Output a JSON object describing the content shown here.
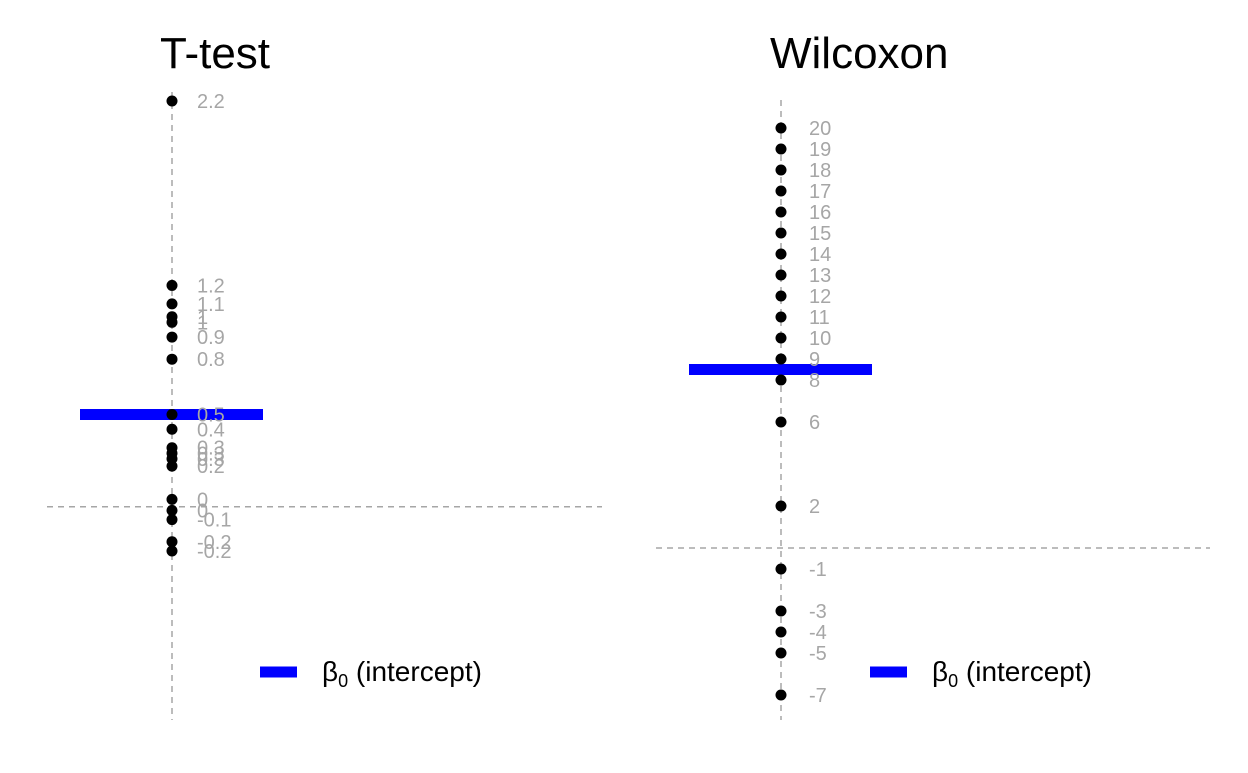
{
  "chart_data": [
    {
      "type": "scatter",
      "title": "T-test",
      "xlabel": "",
      "ylabel": "",
      "ylim": [
        -0.35,
        2.2
      ],
      "grid": false,
      "points": [
        {
          "y": 2.2,
          "label": "2.2"
        },
        {
          "y": 1.2,
          "label": "1.2"
        },
        {
          "y": 1.1,
          "label": "1.1"
        },
        {
          "y": 1.03,
          "label": "1"
        },
        {
          "y": 1.0,
          "label": "1"
        },
        {
          "y": 0.92,
          "label": "0.9"
        },
        {
          "y": 0.8,
          "label": "0.8"
        },
        {
          "y": 0.5,
          "label": "0.5"
        },
        {
          "y": 0.42,
          "label": "0.4"
        },
        {
          "y": 0.32,
          "label": "0.3"
        },
        {
          "y": 0.29,
          "label": "0.3"
        },
        {
          "y": 0.26,
          "label": "0.3"
        },
        {
          "y": 0.22,
          "label": "0.2"
        },
        {
          "y": 0.04,
          "label": "0"
        },
        {
          "y": -0.02,
          "label": "0"
        },
        {
          "y": -0.07,
          "label": "-0.1"
        },
        {
          "y": -0.19,
          "label": "-0.2"
        },
        {
          "y": -0.24,
          "label": "-0.2"
        }
      ],
      "intercept": 0.5,
      "reference_y": 0,
      "reference_x": 0,
      "legend": {
        "symbol": "β",
        "subscript": "0",
        "text": " (intercept)",
        "placement": "bottom-right",
        "color": "#0000ff"
      },
      "colors": {
        "points": "#000000",
        "intercept": "#0000ff",
        "labels": "#a6a6a6",
        "reference": "#a6a6a6"
      }
    },
    {
      "type": "scatter",
      "title": "Wilcoxon",
      "xlabel": "",
      "ylabel": "",
      "ylim": [
        -8,
        21
      ],
      "grid": false,
      "points": [
        {
          "y": 20,
          "label": "20"
        },
        {
          "y": 19,
          "label": "19"
        },
        {
          "y": 18,
          "label": "18"
        },
        {
          "y": 17,
          "label": "17"
        },
        {
          "y": 16,
          "label": "16"
        },
        {
          "y": 15,
          "label": "15"
        },
        {
          "y": 14,
          "label": "14"
        },
        {
          "y": 13,
          "label": "13"
        },
        {
          "y": 12,
          "label": "12"
        },
        {
          "y": 11,
          "label": "11"
        },
        {
          "y": 10,
          "label": "10"
        },
        {
          "y": 9,
          "label": "9"
        },
        {
          "y": 8,
          "label": "8"
        },
        {
          "y": 6,
          "label": "6"
        },
        {
          "y": 2,
          "label": "2"
        },
        {
          "y": -1,
          "label": "-1"
        },
        {
          "y": -3,
          "label": "-3"
        },
        {
          "y": -4,
          "label": "-4"
        },
        {
          "y": -5,
          "label": "-5"
        },
        {
          "y": -7,
          "label": "-7"
        }
      ],
      "intercept": 8.5,
      "reference_y": 0,
      "reference_x": 0,
      "legend": {
        "symbol": "β",
        "subscript": "0",
        "text": " (intercept)",
        "placement": "bottom-right",
        "color": "#0000ff"
      },
      "colors": {
        "points": "#000000",
        "intercept": "#0000ff",
        "labels": "#a6a6a6",
        "reference": "#a6a6a6"
      }
    }
  ]
}
